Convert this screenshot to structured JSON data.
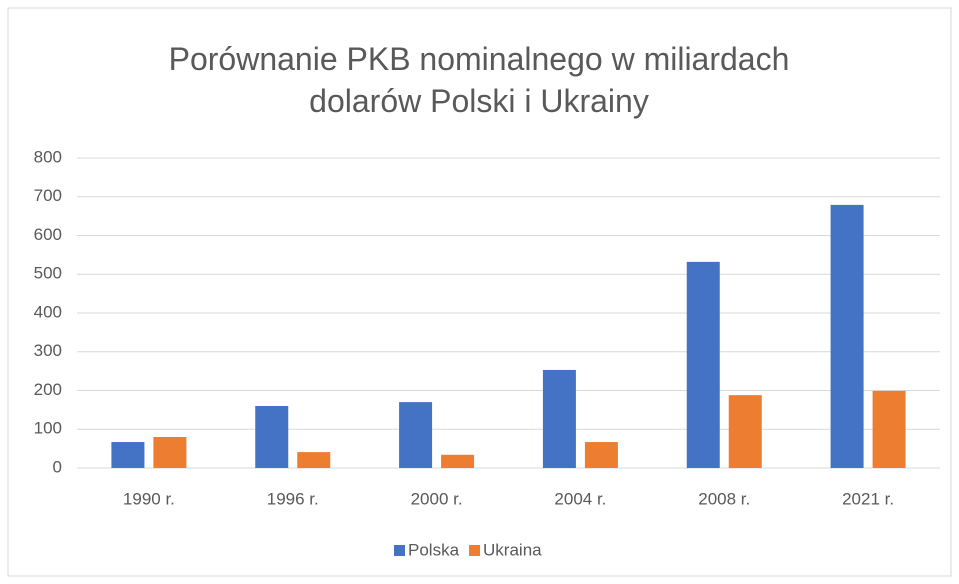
{
  "chart_data": {
    "type": "bar",
    "title": "Porównanie PKB nominalnego w miliardach dolarów Polski i Ukrainy",
    "categories": [
      "1990 r.",
      "1996 r.",
      "2000 r.",
      "2004 r.",
      "2008 r.",
      "2021 r."
    ],
    "series": [
      {
        "name": "Polska",
        "color": "#4472c4",
        "values": [
          67,
          160,
          170,
          253,
          532,
          679
        ]
      },
      {
        "name": "Ukraina",
        "color": "#ed7d31",
        "values": [
          80,
          41,
          34,
          67,
          188,
          199
        ]
      }
    ],
    "ylim": [
      0,
      800
    ],
    "yticks": [
      0,
      100,
      200,
      300,
      400,
      500,
      600,
      700,
      800
    ],
    "grid": true,
    "legend": "bottom"
  }
}
